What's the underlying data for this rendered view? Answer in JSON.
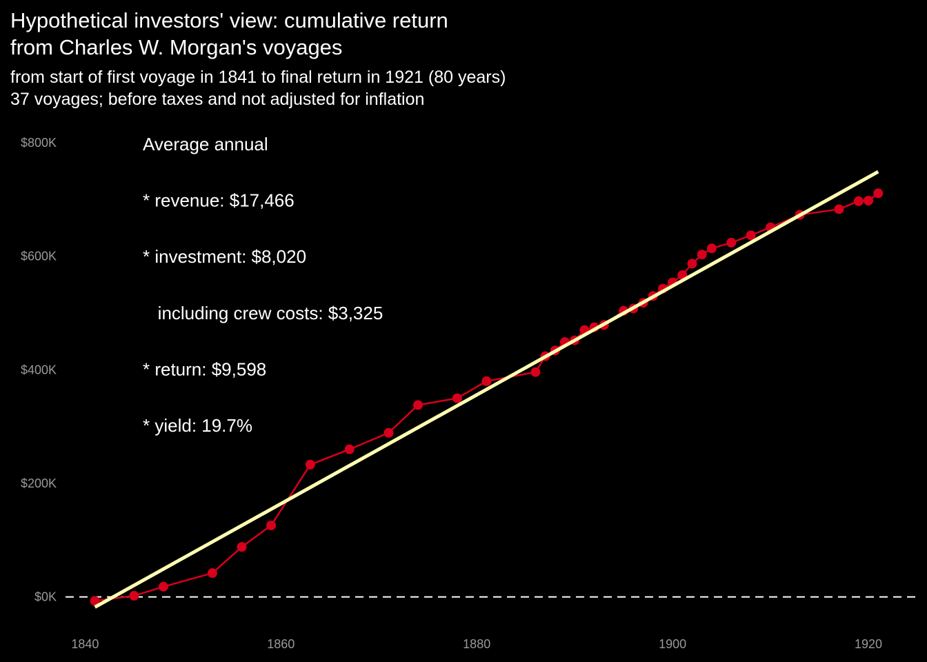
{
  "chart_data": {
    "type": "line",
    "title_line1": "Hypothetical investors' view: cumulative return",
    "title_line2": "from Charles W. Morgan's voyages",
    "subtitle_line1": "from start of first voyage in 1841 to final return in 1921 (80 years)",
    "subtitle_line2": "37 voyages; before taxes and not adjusted for inflation",
    "xlabel": "",
    "ylabel": "",
    "xlim": [
      1838,
      1925
    ],
    "ylim": [
      -60000,
      800000
    ],
    "x_ticks": [
      1840,
      1860,
      1880,
      1900,
      1920
    ],
    "y_ticks": [
      {
        "value": 0,
        "label": "$0K"
      },
      {
        "value": 200000,
        "label": "$200K"
      },
      {
        "value": 400000,
        "label": "$400K"
      },
      {
        "value": 600000,
        "label": "$600K"
      },
      {
        "value": 800000,
        "label": "$800K"
      }
    ],
    "grid": false,
    "reference_line": {
      "y": 0,
      "style": "dashed",
      "color": "#ffffff"
    },
    "series": [
      {
        "color": "#d7001c",
        "points": [
          [
            1841,
            -7000
          ],
          [
            1845,
            2000
          ],
          [
            1848,
            18000
          ],
          [
            1853,
            42000
          ],
          [
            1856,
            88000
          ],
          [
            1859,
            126000
          ],
          [
            1863,
            233000
          ],
          [
            1867,
            260000
          ],
          [
            1871,
            289000
          ],
          [
            1874,
            338000
          ],
          [
            1878,
            350000
          ],
          [
            1881,
            380000
          ],
          [
            1886,
            396000
          ],
          [
            1887,
            424000
          ],
          [
            1888,
            434000
          ],
          [
            1889,
            449000
          ],
          [
            1890,
            452000
          ],
          [
            1891,
            470000
          ],
          [
            1892,
            475000
          ],
          [
            1893,
            479000
          ],
          [
            1895,
            504000
          ],
          [
            1896,
            508000
          ],
          [
            1897,
            518000
          ],
          [
            1898,
            530000
          ],
          [
            1899,
            543000
          ],
          [
            1900,
            554000
          ],
          [
            1901,
            567000
          ],
          [
            1902,
            587000
          ],
          [
            1903,
            603000
          ],
          [
            1904,
            614000
          ],
          [
            1906,
            624000
          ],
          [
            1908,
            637000
          ],
          [
            1910,
            651000
          ],
          [
            1913,
            673000
          ],
          [
            1917,
            683000
          ],
          [
            1919,
            697000
          ],
          [
            1920,
            698000
          ],
          [
            1921,
            711000
          ]
        ]
      }
    ],
    "trend_line": {
      "color": "#ffffb3",
      "from": [
        1841,
        -18000
      ],
      "to": [
        1921,
        749000
      ]
    },
    "annotations": [
      "Average annual",
      "* revenue: $17,466",
      "* investment: $8,020",
      "   including crew costs: $3,325",
      "* return: $9,598",
      "* yield: 19.7%"
    ]
  }
}
